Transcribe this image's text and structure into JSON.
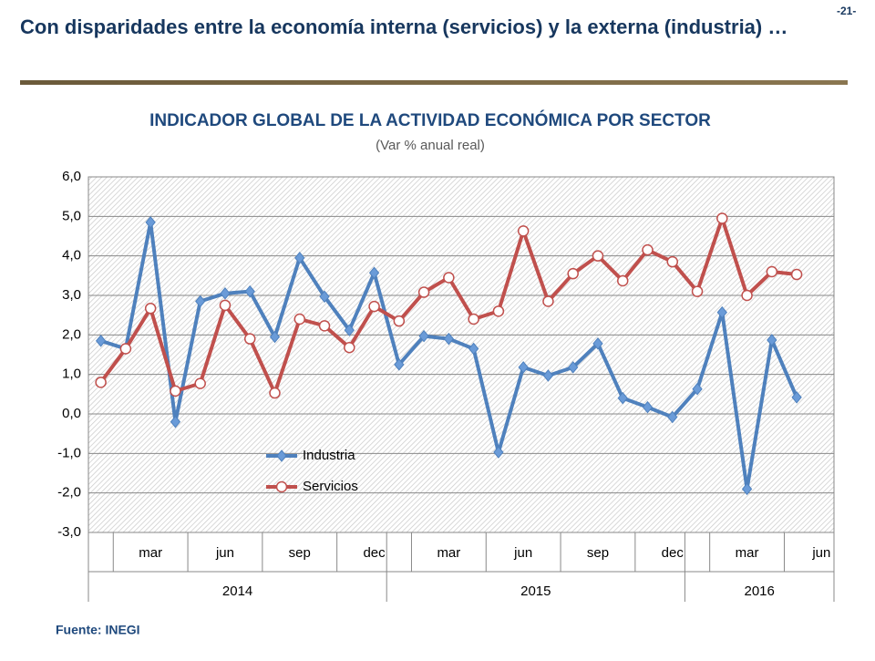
{
  "header": {
    "title": "Con disparidades entre la economía interna (servicios) y la externa (industria) …",
    "page": "-21-"
  },
  "footer": "Fuente: INEGI",
  "chart_data": {
    "type": "line",
    "title": "INDICADOR GLOBAL DE LA ACTIVIDAD ECONÓMICA POR SECTOR",
    "subtitle": "(Var % anual real)",
    "categories": [
      null,
      null,
      "mar",
      null,
      null,
      "jun",
      null,
      null,
      "sep",
      null,
      null,
      "dec",
      null,
      null,
      "mar",
      null,
      null,
      "jun",
      null,
      null,
      "sep",
      null,
      null,
      "dec",
      null,
      null,
      "mar",
      null,
      null,
      "jun"
    ],
    "groups": [
      {
        "label": "2014",
        "size": 12
      },
      {
        "label": "2015",
        "size": 12
      },
      {
        "label": "2016",
        "size": 6
      }
    ],
    "series": [
      {
        "name": "Industria",
        "color": "#4f81bd",
        "values": [
          1.85,
          1.65,
          4.85,
          -0.2,
          2.85,
          3.05,
          3.1,
          1.95,
          3.95,
          2.97,
          2.12,
          3.57,
          1.25,
          1.97,
          1.9,
          1.65,
          -0.97,
          1.18,
          0.97,
          1.18,
          1.78,
          0.4,
          0.17,
          -0.08,
          0.63,
          2.57,
          -1.9,
          1.87,
          0.42,
          null
        ]
      },
      {
        "name": "Servicios",
        "color": "#c0504d",
        "values": [
          0.8,
          1.65,
          2.67,
          0.58,
          0.77,
          2.75,
          1.9,
          0.53,
          2.4,
          2.23,
          1.68,
          2.72,
          2.35,
          3.08,
          3.45,
          2.4,
          2.6,
          4.63,
          2.85,
          3.55,
          4.0,
          3.37,
          4.15,
          3.85,
          3.1,
          4.95,
          3.0,
          3.6,
          3.53,
          null
        ]
      }
    ],
    "ylim": [
      -3,
      6
    ],
    "yticks": [
      {
        "value": -3,
        "label": "-3,0"
      },
      {
        "value": -2,
        "label": "-2,0"
      },
      {
        "value": -1,
        "label": "-1,0"
      },
      {
        "value": 0,
        "label": "0,0"
      },
      {
        "value": 1,
        "label": "1,0"
      },
      {
        "value": 2,
        "label": "2,0"
      },
      {
        "value": 3,
        "label": "3,0"
      },
      {
        "value": 4,
        "label": "4,0"
      },
      {
        "value": 5,
        "label": "5,0"
      },
      {
        "value": 6,
        "label": "6,0"
      }
    ],
    "grid": true
  }
}
